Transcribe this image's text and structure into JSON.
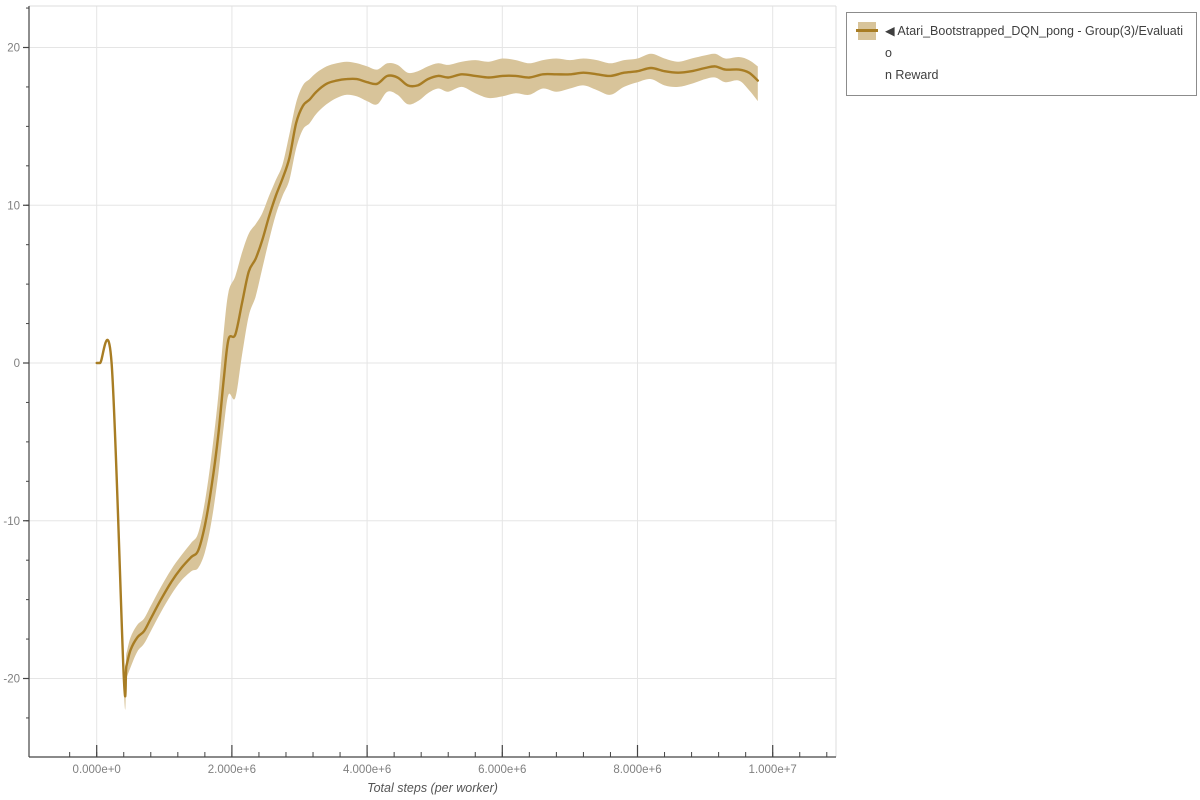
{
  "legend": {
    "collapse_icon": "left-triangle",
    "line1": "◀ Atari_Bootstrapped_DQN_pong - Group(3)/Evaluatio",
    "line2": "n Reward",
    "series_full_name": "Atari_Bootstrapped_DQN_pong - Group(3)/Evaluation Reward"
  },
  "colors": {
    "line": "#a87d24",
    "band": "#d8c49a",
    "grid": "#e5e5e5",
    "frame_light": "#dedede",
    "axis": "#444444",
    "tick_text": "#7f7f7f"
  },
  "chart_data": {
    "type": "line",
    "title": "",
    "xlabel": "Total steps (per worker)",
    "ylabel": "",
    "xlim": [
      -1000000,
      10940000
    ],
    "ylim": [
      -25,
      22.6
    ],
    "grid": true,
    "legend_position": "outside-top-right",
    "x_ticks": [
      {
        "label": "0.000e+0",
        "value": 0
      },
      {
        "label": "2.000e+6",
        "value": 2000000
      },
      {
        "label": "4.000e+6",
        "value": 4000000
      },
      {
        "label": "6.000e+6",
        "value": 6000000
      },
      {
        "label": "8.000e+6",
        "value": 8000000
      },
      {
        "label": "1.000e+7",
        "value": 10000000
      }
    ],
    "y_ticks": [
      {
        "label": "20",
        "value": 20
      },
      {
        "label": "10",
        "value": 10
      },
      {
        "label": "0",
        "value": 0
      },
      {
        "label": "-10",
        "value": -10
      },
      {
        "label": "-20",
        "value": -20
      }
    ],
    "minor_x_tick_step": 400000,
    "minor_y_tick_step": 2.5,
    "series": [
      {
        "name": "Atari_Bootstrapped_DQN_pong - Group(3)/Evaluation Reward",
        "line_color": "#a87d24",
        "band_color": "#d8c49a",
        "x": [
          0,
          50000,
          220000,
          400000,
          440000,
          500000,
          600000,
          700000,
          800000,
          950000,
          1100000,
          1250000,
          1400000,
          1500000,
          1600000,
          1700000,
          1800000,
          1880000,
          1950000,
          2050000,
          2150000,
          2250000,
          2350000,
          2450000,
          2550000,
          2650000,
          2750000,
          2850000,
          2950000,
          3050000,
          3150000,
          3250000,
          3400000,
          3550000,
          3700000,
          3850000,
          4000000,
          4150000,
          4300000,
          4450000,
          4600000,
          4750000,
          4900000,
          5050000,
          5200000,
          5400000,
          5600000,
          5800000,
          6000000,
          6200000,
          6400000,
          6600000,
          6800000,
          7000000,
          7200000,
          7400000,
          7600000,
          7800000,
          8000000,
          8200000,
          8400000,
          8600000,
          8800000,
          9000000,
          9150000,
          9300000,
          9500000,
          9650000,
          9780000
        ],
        "mean": [
          0,
          0,
          0,
          -19.8,
          -19.2,
          -18.2,
          -17.4,
          -17.0,
          -16.2,
          -15.0,
          -13.9,
          -13.0,
          -12.3,
          -11.9,
          -10.3,
          -7.8,
          -4.5,
          -1.0,
          1.5,
          1.8,
          3.8,
          5.8,
          6.6,
          7.8,
          9.3,
          10.6,
          11.7,
          13.0,
          15.2,
          16.3,
          16.7,
          17.2,
          17.7,
          17.9,
          18.0,
          18.0,
          17.8,
          17.7,
          18.2,
          18.1,
          17.6,
          17.6,
          18.0,
          18.2,
          18.1,
          18.3,
          18.2,
          18.1,
          18.2,
          18.2,
          18.1,
          18.3,
          18.3,
          18.3,
          18.4,
          18.3,
          18.2,
          18.4,
          18.5,
          18.7,
          18.5,
          18.4,
          18.5,
          18.7,
          18.8,
          18.6,
          18.6,
          18.4,
          17.9
        ],
        "upper": [
          0.05,
          0.05,
          0.05,
          -19.0,
          -18.4,
          -17.4,
          -16.6,
          -16.2,
          -15.4,
          -14.2,
          -13.1,
          -12.2,
          -11.4,
          -10.8,
          -8.8,
          -5.8,
          -2.0,
          2.0,
          4.5,
          5.5,
          7.0,
          8.2,
          8.8,
          9.5,
          10.6,
          11.6,
          12.6,
          14.5,
          16.5,
          17.6,
          18.0,
          18.4,
          18.8,
          19.0,
          19.1,
          19.0,
          18.8,
          18.6,
          19.0,
          18.9,
          18.4,
          18.5,
          18.8,
          19.0,
          18.9,
          19.1,
          19.2,
          19.1,
          19.3,
          19.2,
          19.0,
          19.2,
          19.3,
          19.2,
          19.3,
          19.2,
          19.0,
          19.2,
          19.3,
          19.6,
          19.3,
          19.1,
          19.3,
          19.5,
          19.6,
          19.3,
          19.4,
          19.2,
          18.8
        ],
        "lower": [
          -0.05,
          -0.05,
          -0.05,
          -20.6,
          -20.0,
          -19.3,
          -18.3,
          -17.8,
          -17.0,
          -15.8,
          -14.7,
          -13.8,
          -13.2,
          -13.0,
          -12.0,
          -10.0,
          -7.0,
          -4.0,
          -2.0,
          -2.2,
          0.5,
          3.0,
          4.2,
          6.0,
          7.8,
          9.4,
          10.6,
          11.6,
          13.6,
          14.8,
          15.2,
          15.8,
          16.4,
          16.8,
          17.0,
          16.9,
          16.6,
          16.4,
          17.2,
          17.0,
          16.4,
          16.6,
          17.1,
          17.4,
          17.2,
          17.5,
          17.1,
          16.8,
          16.9,
          17.1,
          17.0,
          17.4,
          17.2,
          17.4,
          17.6,
          17.3,
          17.0,
          17.5,
          17.8,
          18.0,
          17.6,
          17.5,
          17.7,
          18.0,
          18.1,
          17.8,
          17.9,
          17.3,
          16.6
        ]
      }
    ]
  }
}
